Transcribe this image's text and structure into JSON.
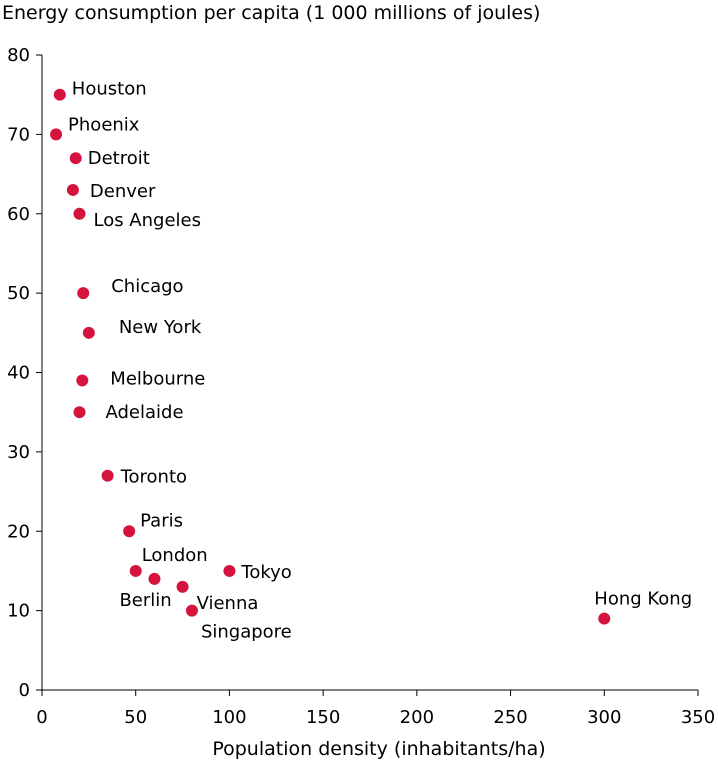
{
  "chart_data": {
    "type": "scatter",
    "title": "Energy consumption per capita (1 000 millions of joules)",
    "xlabel": "Population density (inhabitants/ha)",
    "ylabel": "",
    "xlim": [
      0,
      350
    ],
    "ylim": [
      0,
      80
    ],
    "xticks": [
      0,
      50,
      100,
      150,
      200,
      250,
      300,
      350
    ],
    "yticks": [
      0,
      10,
      20,
      30,
      40,
      50,
      60,
      70,
      80
    ],
    "grid": false,
    "marker_color": "#d4143e",
    "points": [
      {
        "label": "Houston",
        "x": 9.5,
        "y": 75
      },
      {
        "label": "Phoenix",
        "x": 7.5,
        "y": 70
      },
      {
        "label": "Detroit",
        "x": 18,
        "y": 67
      },
      {
        "label": "Denver",
        "x": 16.5,
        "y": 63
      },
      {
        "label": "Los Angeles",
        "x": 20,
        "y": 60
      },
      {
        "label": "Chicago",
        "x": 22,
        "y": 50
      },
      {
        "label": "New York",
        "x": 25,
        "y": 45
      },
      {
        "label": "Melbourne",
        "x": 21.5,
        "y": 39
      },
      {
        "label": "Adelaide",
        "x": 20,
        "y": 35
      },
      {
        "label": "Toronto",
        "x": 35,
        "y": 27
      },
      {
        "label": "Paris",
        "x": 46.5,
        "y": 20
      },
      {
        "label": "London",
        "x": 50,
        "y": 15
      },
      {
        "label": "Berlin",
        "x": 60,
        "y": 14
      },
      {
        "label": "Tokyo",
        "x": 100,
        "y": 15
      },
      {
        "label": "Vienna",
        "x": 75,
        "y": 13
      },
      {
        "label": "Singapore",
        "x": 80,
        "y": 10
      },
      {
        "label": "Hong Kong",
        "x": 300,
        "y": 9
      }
    ]
  }
}
